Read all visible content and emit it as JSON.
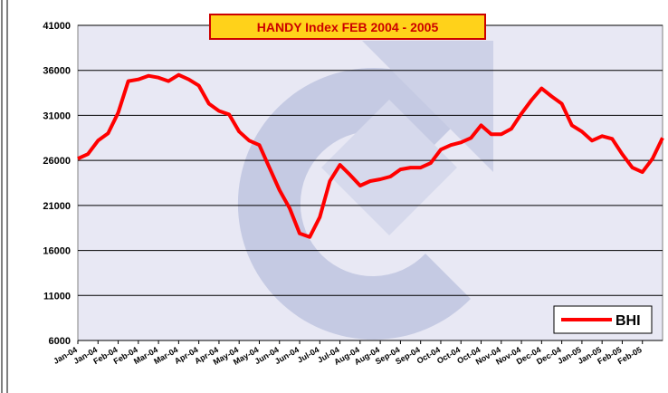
{
  "chart_data": {
    "type": "line",
    "title": "HANDY Index FEB 2004 - 2005",
    "categories": [
      "Jan-04",
      null,
      "Jan-04",
      null,
      "Feb-04",
      null,
      "Feb-04",
      null,
      "Mar-04",
      null,
      "Mar-04",
      null,
      "Apr-04",
      null,
      "Apr-04",
      null,
      "May-04",
      null,
      "May-04",
      null,
      "Jun-04",
      null,
      "Jun-04",
      null,
      "Jul-04",
      null,
      "Jul-04",
      null,
      "Aug-04",
      null,
      "Aug-04",
      null,
      "Sep-04",
      null,
      "Sep-04",
      null,
      "Oct-04",
      null,
      "Oct-04",
      null,
      "Oct-04",
      null,
      "Nov-04",
      null,
      "Nov-04",
      null,
      "Dec-04",
      null,
      "Dec-04",
      null,
      "Jan-05",
      null,
      "Jan-05",
      null,
      "Feb-05",
      null,
      "Feb-05",
      null,
      null
    ],
    "series": [
      {
        "name": "BHI",
        "color": "#ff0000",
        "values": [
          26200,
          26700,
          28200,
          29000,
          31300,
          34800,
          35000,
          35400,
          35200,
          34800,
          35500,
          35000,
          34300,
          32300,
          31500,
          31100,
          29200,
          28200,
          27700,
          25200,
          22700,
          20700,
          17900,
          17500,
          19700,
          23700,
          25500,
          24400,
          23200,
          23700,
          23900,
          24200,
          25000,
          25200,
          25200,
          25700,
          27200,
          27700,
          28000,
          28500,
          29900,
          28900,
          28900,
          29500,
          31200,
          32700,
          34000,
          33100,
          32300,
          29900,
          29200,
          28200,
          28700,
          28400,
          26700,
          25200,
          24700,
          26200,
          28500
        ]
      }
    ],
    "ylim": [
      6000,
      41000
    ],
    "yticks": [
      6000,
      11000,
      16000,
      21000,
      26000,
      31000,
      36000,
      41000
    ],
    "grid": true,
    "legend": "lower right"
  }
}
